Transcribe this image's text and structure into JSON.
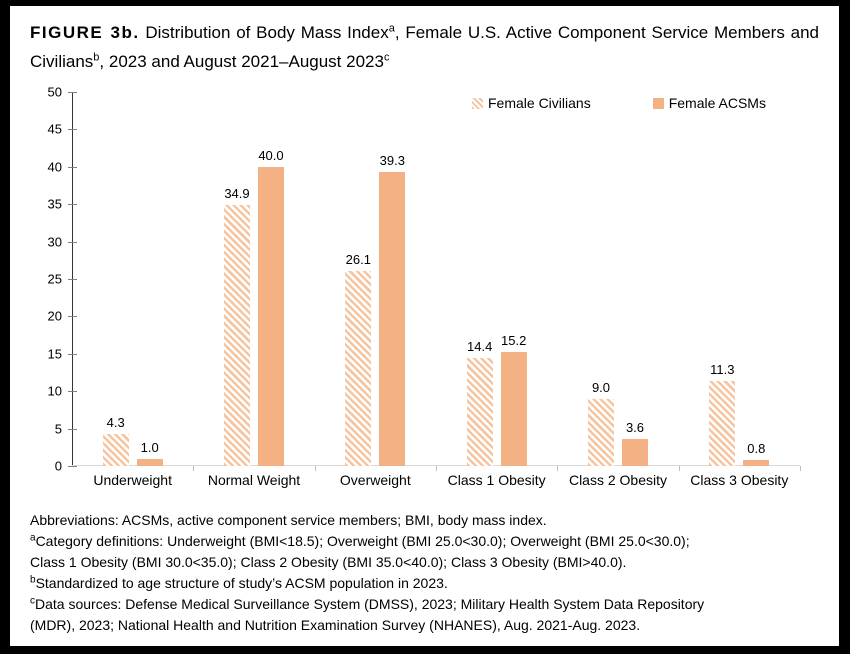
{
  "title": {
    "segments": [
      {
        "text": "FIGURE 3b.",
        "bold": true
      },
      {
        "text": " Distribution of Body Mass Index"
      },
      {
        "sup": "a"
      },
      {
        "text": ", Female U.S. Active Component Service Members and Civilians"
      },
      {
        "sup": "b"
      },
      {
        "text": ", 2023 and August 2021–August 2023"
      },
      {
        "sup": "c"
      }
    ]
  },
  "chart_data": {
    "type": "bar",
    "title": "",
    "categories": [
      "Underweight",
      "Normal Weight",
      "Overweight",
      "Class 1 Obesity",
      "Class 2 Obesity",
      "Class 3 Obesity"
    ],
    "series": [
      {
        "name": "Female Civilians",
        "style": "hatch",
        "values": [
          4.3,
          34.9,
          26.1,
          14.4,
          9.0,
          11.3
        ],
        "labels": [
          "4.3",
          "34.9",
          "26.1",
          "14.4",
          "9.0",
          "11.3"
        ]
      },
      {
        "name": "Female ACSMs",
        "style": "solid",
        "values": [
          1.0,
          40.0,
          39.3,
          15.2,
          3.6,
          0.8
        ],
        "labels": [
          "1.0",
          "40.0",
          "39.3",
          "15.2",
          "3.6",
          "0.8"
        ]
      }
    ],
    "xlabel": "",
    "ylabel": "",
    "ylim": [
      0,
      50
    ],
    "y_ticks": [
      "0",
      "5",
      "10",
      "15",
      "20",
      "25",
      "30",
      "35",
      "40",
      "45",
      "50"
    ],
    "grid": false,
    "legend_position": "top-inside"
  },
  "colors": {
    "civilians_hatch": "#F6C5A0",
    "acsm_solid": "#F4B183",
    "x_axis": "#D9D9D9",
    "y_axis": "#333333",
    "tick": "#7F7F7F",
    "frame": "#000000"
  },
  "footnotes": [
    {
      "sup": "",
      "text": "Abbreviations: ACSMs, active component service members; BMI, body mass index."
    },
    {
      "sup": "a",
      "text": "Category definitions: Underweight (BMI<18.5); Overweight (BMI 25.0<30.0); Overweight (BMI 25.0<30.0);"
    },
    {
      "sup": "",
      "text": "Class 1 Obesity (BMI 30.0<35.0); Class 2 Obesity (BMI 35.0<40.0); Class 3 Obesity (BMI>40.0)."
    },
    {
      "sup": "b",
      "text": "Standardized to age structure of study’s ACSM population in 2023."
    },
    {
      "sup": "c",
      "text": "Data sources: Defense Medical Surveillance System (DMSS), 2023; Military Health System Data Repository"
    },
    {
      "sup": "",
      "text": "(MDR), 2023; National Health and Nutrition Examination Survey (NHANES), Aug. 2021-Aug. 2023."
    }
  ]
}
